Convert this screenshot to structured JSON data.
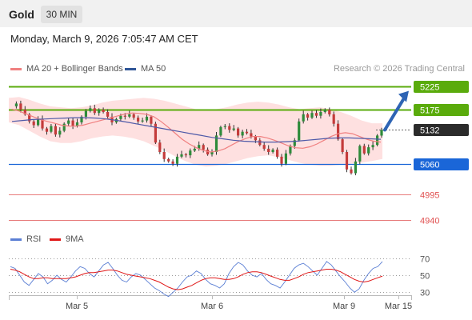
{
  "header": {
    "title": "Gold",
    "timeframe": "30 MIN"
  },
  "date": "Monday, March 9, 2026 7:05:47 AM CET",
  "legend": {
    "ma20_label": "MA 20 + Bollinger Bands",
    "ma50_label": "MA 50",
    "credit": "Research © 2026 Trading Central"
  },
  "rsi_legend": {
    "rsi_label": "RSI",
    "ma_label": "9MA"
  },
  "colors": {
    "support": "#1a66d8",
    "resistance": "#5aab0c",
    "current": "#2b2b2b",
    "minor": "#e05050",
    "ma20": "#f08080",
    "ma50": "#4f5aa8",
    "band": "#fdd6d6",
    "up": "#2e8b3a",
    "down": "#c43b3b",
    "arrow": "#2e64b4",
    "rsi": "#5b7fd4",
    "rsi_ma": "#e01818"
  },
  "chart_data": [
    {
      "type": "candlestick",
      "title": "Gold 30 MIN",
      "ylim": [
        4915,
        5255
      ],
      "x_ticks": [
        "Mar 5",
        "Mar 6",
        "Mar 9",
        "Mar 15"
      ],
      "current_price": 5132,
      "levels": [
        {
          "value": 5225,
          "label": "5225",
          "kind": "resistance"
        },
        {
          "value": 5175,
          "label": "5175",
          "kind": "resistance"
        },
        {
          "value": 5132,
          "label": "5132",
          "kind": "current"
        },
        {
          "value": 5060,
          "label": "5060",
          "kind": "support"
        },
        {
          "value": 4995,
          "label": "4995",
          "kind": "minor"
        },
        {
          "value": 4940,
          "label": "4940",
          "kind": "minor"
        }
      ],
      "forecast": {
        "from": 5132,
        "to": 5225
      },
      "price_path": [
        5182,
        5188,
        5175,
        5165,
        5150,
        5142,
        5155,
        5135,
        5128,
        5140,
        5122,
        5130,
        5145,
        5152,
        5140,
        5148,
        5160,
        5172,
        5178,
        5168,
        5175,
        5170,
        5160,
        5148,
        5155,
        5162,
        5160,
        5165,
        5158,
        5150,
        5152,
        5160,
        5145,
        5105,
        5085,
        5070,
        5065,
        5060,
        5075,
        5080,
        5078,
        5088,
        5092,
        5100,
        5090,
        5080,
        5085,
        5120,
        5138,
        5140,
        5132,
        5135,
        5120,
        5128,
        5125,
        5118,
        5110,
        5100,
        5092,
        5085,
        5090,
        5075,
        5060,
        5082,
        5098,
        5110,
        5150,
        5165,
        5158,
        5168,
        5162,
        5170,
        5175,
        5165,
        5145,
        5112,
        5085,
        5048,
        5040,
        5065,
        5098,
        5082,
        5095,
        5100,
        5120,
        5132
      ],
      "ma20": [
        5176,
        5172,
        5166,
        5160,
        5154,
        5150,
        5146,
        5142,
        5140,
        5140,
        5142,
        5146,
        5150,
        5154,
        5158,
        5162,
        5166,
        5168,
        5167,
        5165,
        5160,
        5150,
        5138,
        5125,
        5112,
        5102,
        5094,
        5088,
        5085,
        5087,
        5092,
        5100,
        5108,
        5114,
        5118,
        5118,
        5115,
        5110,
        5104,
        5098,
        5094,
        5093,
        5096,
        5102,
        5110,
        5118,
        5124,
        5126,
        5124,
        5118,
        5112,
        5108,
        5106
      ],
      "ma50": [
        5150,
        5152,
        5154,
        5155,
        5156,
        5157,
        5158,
        5158,
        5157,
        5155,
        5152,
        5148,
        5144,
        5140,
        5136,
        5132,
        5128,
        5124,
        5120,
        5116,
        5113,
        5110,
        5108,
        5107,
        5106,
        5106,
        5107,
        5108,
        5110,
        5112,
        5114,
        5115,
        5115,
        5114,
        5113,
        5112
      ],
      "band_upper": [
        5200,
        5202,
        5196,
        5188,
        5182,
        5180,
        5178,
        5180,
        5184,
        5190,
        5194,
        5196,
        5198,
        5200,
        5198,
        5194,
        5188,
        5182,
        5176,
        5174,
        5176,
        5180,
        5186,
        5190,
        5192,
        5190,
        5186,
        5180,
        5176,
        5178,
        5180,
        5176,
        5170,
        5162,
        5152,
        5146,
        5146
      ],
      "band_lower": [
        5148,
        5142,
        5130,
        5118,
        5108,
        5104,
        5104,
        5108,
        5114,
        5118,
        5120,
        5118,
        5114,
        5108,
        5098,
        5088,
        5076,
        5066,
        5058,
        5054,
        5056,
        5060,
        5066,
        5072,
        5076,
        5078,
        5074,
        5068,
        5062,
        5058,
        5056,
        5056,
        5058,
        5060,
        5062,
        5066,
        5070
      ]
    },
    {
      "type": "line",
      "title": "RSI",
      "ylim": [
        20,
        80
      ],
      "y_ticks": [
        70,
        50,
        30
      ],
      "series": [
        {
          "name": "RSI",
          "values": [
            60,
            58,
            50,
            42,
            38,
            45,
            52,
            48,
            40,
            44,
            50,
            45,
            42,
            48,
            55,
            60,
            58,
            52,
            48,
            55,
            62,
            65,
            58,
            50,
            44,
            42,
            48,
            52,
            50,
            45,
            40,
            35,
            32,
            28,
            25,
            30,
            35,
            42,
            48,
            50,
            55,
            52,
            45,
            40,
            38,
            35,
            40,
            52,
            60,
            65,
            62,
            55,
            50,
            48,
            52,
            45,
            40,
            38,
            35,
            42,
            50,
            58,
            62,
            64,
            60,
            55,
            50,
            58,
            66,
            62,
            55,
            48,
            42,
            35,
            30,
            34,
            44,
            52,
            58,
            60,
            66
          ]
        },
        {
          "name": "9MA",
          "values": [
            57,
            56,
            54,
            51,
            48,
            46,
            46,
            47,
            47,
            46,
            46,
            46,
            46,
            47,
            48,
            50,
            52,
            53,
            53,
            54,
            55,
            56,
            56,
            55,
            53,
            51,
            50,
            49,
            48,
            47,
            46,
            44,
            42,
            39,
            36,
            34,
            33,
            34,
            36,
            38,
            41,
            44,
            46,
            47,
            47,
            46,
            45,
            45,
            46,
            48,
            51,
            53,
            54,
            54,
            53,
            51,
            49,
            47,
            45,
            44,
            44,
            46,
            48,
            51,
            53,
            54,
            55,
            56,
            57,
            57,
            56,
            54,
            51,
            48,
            45,
            43,
            42,
            43,
            45,
            47,
            49
          ]
        }
      ]
    }
  ]
}
